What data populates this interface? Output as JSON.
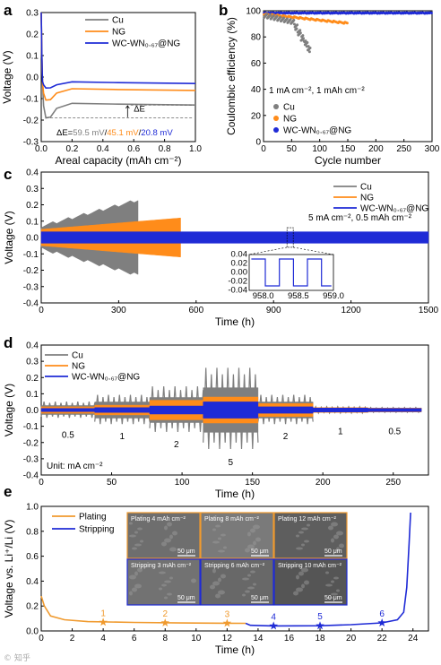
{
  "colors": {
    "cu": "#7f7f7f",
    "ng": "#ff8c1a",
    "wc": "#1f2bd6",
    "plating": "#f09a2e",
    "stripping": "#1f2bd6"
  },
  "chart_data": [
    {
      "panel": "a",
      "type": "line",
      "xlabel": "Areal capacity (mAh cm⁻²)",
      "ylabel": "Voltage (V)",
      "xlim": [
        0,
        1.0
      ],
      "ylim": [
        -0.3,
        0.3
      ],
      "xticks": [
        "0.0",
        "0.2",
        "0.4",
        "0.6",
        "0.8",
        "1.0"
      ],
      "yticks": [
        "-0.3",
        "-0.2",
        "-0.1",
        "0.0",
        "0.1",
        "0.2",
        "0.3"
      ],
      "series": [
        {
          "name": "Cu",
          "plateau": -0.13,
          "nucleation": -0.19
        },
        {
          "name": "NG",
          "plateau": -0.062,
          "nucleation": -0.107
        },
        {
          "name": "WC-WN₀.₆₇@NG",
          "plateau": -0.03,
          "nucleation": -0.051
        }
      ],
      "annotation_dE": "ΔE",
      "annotation_prefix": "ΔE=",
      "annotation_values": [
        "59.5 mV",
        "45.1 mV",
        "20.8 mV"
      ]
    },
    {
      "panel": "b",
      "type": "scatter",
      "xlabel": "Cycle number",
      "ylabel": "Coulombic efficiency (%)",
      "xlim": [
        0,
        300
      ],
      "ylim": [
        0,
        100
      ],
      "xticks": [
        "0",
        "50",
        "100",
        "150",
        "200",
        "250",
        "300"
      ],
      "yticks": [
        "0",
        "20",
        "40",
        "60",
        "80",
        "100"
      ],
      "condition": "1 mA cm⁻², 1 mAh cm⁻²",
      "series": [
        {
          "name": "Cu",
          "x_range": [
            1,
            83
          ],
          "trend": "drops from 98 to ~68"
        },
        {
          "name": "NG",
          "x_range": [
            1,
            150
          ],
          "trend": "declines from 98 to ~91"
        },
        {
          "name": "WC-WN₀.₆₇@NG",
          "x_range": [
            1,
            300
          ],
          "trend": "stable ~98.5"
        }
      ]
    },
    {
      "panel": "c",
      "type": "line",
      "xlabel": "Time (h)",
      "ylabel": "Voltage (V)",
      "xlim": [
        0,
        1500
      ],
      "ylim": [
        -0.4,
        0.4
      ],
      "xticks": [
        "0",
        "300",
        "600",
        "900",
        "1200",
        "1500"
      ],
      "yticks": [
        "-0.4",
        "-0.3",
        "-0.2",
        "-0.1",
        "0.0",
        "0.1",
        "0.2",
        "0.3",
        "0.4"
      ],
      "condition": "5 mA cm⁻², 0.5 mAh cm⁻²",
      "series": [
        {
          "name": "Cu",
          "end_h": 375,
          "amp_start": 0.06,
          "amp_end": 0.22
        },
        {
          "name": "NG",
          "end_h": 545,
          "amp_start": 0.05,
          "amp_end": 0.12
        },
        {
          "name": "WC-WN₀.₆₇@NG",
          "end_h": 1500,
          "amp": 0.035
        }
      ],
      "inset": {
        "xlim": [
          957.8,
          959.0
        ],
        "ylim": [
          -0.04,
          0.04
        ],
        "xticks": [
          "958.0",
          "958.5",
          "959.0"
        ],
        "yticks": [
          "0.04",
          "0.02",
          "0.00",
          "-0.02",
          "-0.04"
        ]
      }
    },
    {
      "panel": "d",
      "type": "line",
      "xlabel": "Time (h)",
      "ylabel": "Voltage (V)",
      "xlim": [
        0,
        275
      ],
      "ylim": [
        -0.4,
        0.4
      ],
      "xticks": [
        "0",
        "50",
        "100",
        "150",
        "200",
        "250"
      ],
      "yticks": [
        "-0.4",
        "-0.3",
        "-0.2",
        "-0.1",
        "0.0",
        "0.1",
        "0.2",
        "0.3",
        "0.4"
      ],
      "unit_note": "Unit: mA cm⁻²",
      "rate_labels": [
        "0.5",
        "1",
        "2",
        "5",
        "2",
        "1",
        "0.5"
      ],
      "segments_h": [
        [
          0,
          38
        ],
        [
          38,
          77
        ],
        [
          77,
          115
        ],
        [
          115,
          154
        ],
        [
          154,
          193
        ],
        [
          193,
          232
        ],
        [
          232,
          270
        ]
      ],
      "series": [
        {
          "name": "Cu",
          "amps": [
            0.05,
            0.09,
            0.14,
            0.25,
            0.09,
            0.02,
            0.015
          ]
        },
        {
          "name": "NG",
          "amps": [
            0.02,
            0.03,
            0.06,
            0.08,
            0.04,
            0.015,
            0.012
          ]
        },
        {
          "name": "WC-WN₀.₆₇@NG",
          "amps": [
            0.01,
            0.015,
            0.025,
            0.05,
            0.02,
            0.012,
            0.01
          ]
        }
      ]
    },
    {
      "panel": "e",
      "type": "line",
      "xlabel": "Time (h)",
      "ylabel": "Voltage vs. Li⁺/Li (V)",
      "xlim": [
        0,
        25
      ],
      "ylim": [
        0,
        1.0
      ],
      "xticks": [
        "0",
        "2",
        "4",
        "6",
        "8",
        "10",
        "12",
        "14",
        "16",
        "18",
        "20",
        "22",
        "24"
      ],
      "yticks": [
        "0.0",
        "0.2",
        "0.4",
        "0.6",
        "0.8",
        "1.0"
      ],
      "series": [
        {
          "name": "Plating"
        },
        {
          "name": "Stripping"
        }
      ],
      "markers": [
        {
          "label": "1",
          "x": 4,
          "y": 0.07,
          "series": "Plating"
        },
        {
          "label": "2",
          "x": 8,
          "y": 0.065,
          "series": "Plating"
        },
        {
          "label": "3",
          "x": 12,
          "y": 0.062,
          "series": "Plating"
        },
        {
          "label": "4",
          "x": 15,
          "y": 0.04,
          "series": "Stripping"
        },
        {
          "label": "5",
          "x": 18,
          "y": 0.042,
          "series": "Stripping"
        },
        {
          "label": "6",
          "x": 22,
          "y": 0.065,
          "series": "Stripping"
        }
      ],
      "micrographs": [
        {
          "caption": "Plating 4 mAh cm⁻²",
          "scale": "50 μm"
        },
        {
          "caption": "Plating 8 mAh cm⁻²",
          "scale": "50 μm"
        },
        {
          "caption": "Plating 12 mAh cm⁻²",
          "scale": "50 μm"
        },
        {
          "caption": "Stripping 3 mAh cm⁻²",
          "scale": "50 μm"
        },
        {
          "caption": "Stripping 6 mAh cm⁻²",
          "scale": "50 μm"
        },
        {
          "caption": "Stripping 10 mAh cm⁻²",
          "scale": "50 μm"
        }
      ]
    }
  ]
}
